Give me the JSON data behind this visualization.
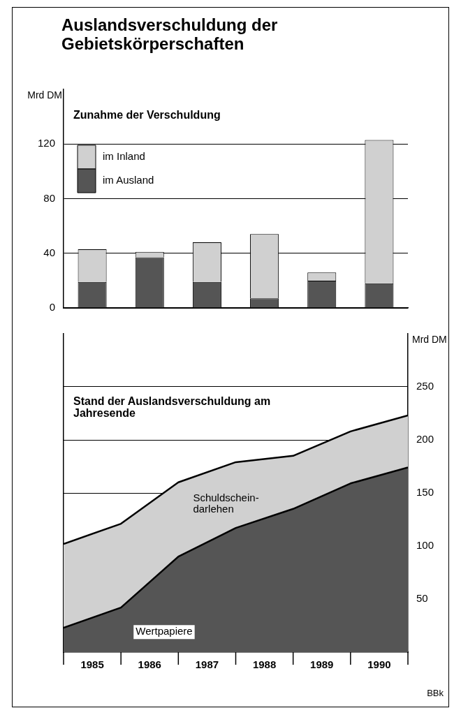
{
  "chart_data": [
    {
      "type": "bar",
      "title": "Auslandsverschuldung der Gebietskörperschaften",
      "subtitle": "Zunahme der Verschuldung",
      "ylabel": "Mrd DM",
      "categories": [
        "1985",
        "1986",
        "1987",
        "1988",
        "1989",
        "1990"
      ],
      "stacked": true,
      "series": [
        {
          "name": "im Ausland",
          "color": "#555555",
          "values": [
            19,
            37,
            19,
            7,
            20,
            18
          ]
        },
        {
          "name": "im Inland",
          "color": "#d0d0d0",
          "values": [
            24,
            4,
            29,
            47,
            6,
            105
          ]
        }
      ],
      "ylim": [
        0,
        160
      ],
      "yticks": [
        0,
        40,
        80,
        120
      ],
      "grid": "y",
      "legend": "top left",
      "tick_labels": "y"
    },
    {
      "type": "area",
      "title": "Stand der Auslandsverschuldung am Jahresende",
      "ylabel": "Mrd DM",
      "stacked": true,
      "x": [
        1985,
        1986,
        1987,
        1988,
        1989,
        1990,
        1991
      ],
      "series": [
        {
          "name": "Wertpapiere",
          "color": "#555555",
          "values": [
            23,
            42,
            90,
            117,
            135,
            159,
            174
          ]
        },
        {
          "name": "Schuldschein-darlehen",
          "color": "#d0d0d0",
          "values": [
            79,
            79,
            70,
            62,
            50,
            49,
            49
          ]
        }
      ],
      "xlim": [
        1985,
        1991
      ],
      "xticks": [
        {
          "value": 1985.5,
          "label": "1985"
        },
        {
          "value": 1986.5,
          "label": "1986"
        },
        {
          "value": 1987.5,
          "label": "1987"
        },
        {
          "value": 1988.5,
          "label": "1988"
        },
        {
          "value": 1989.5,
          "label": "1989"
        },
        {
          "value": 1990.5,
          "label": "1990"
        }
      ],
      "ylim": [
        0,
        300
      ],
      "yticks": [
        50,
        100,
        150,
        200,
        250
      ],
      "grid": "y",
      "annotations": [
        "BBk"
      ]
    }
  ]
}
